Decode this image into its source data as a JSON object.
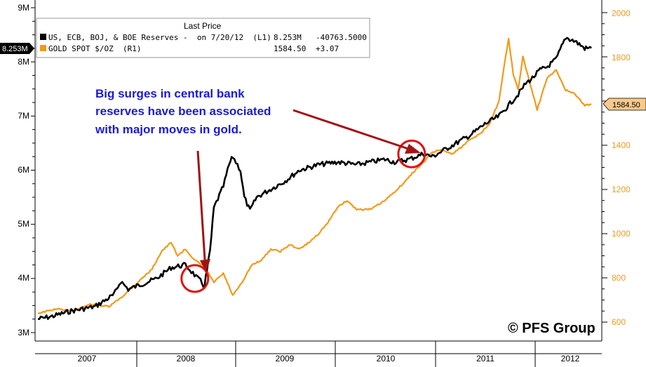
{
  "chart_data": {
    "type": "line",
    "legend": {
      "header": "Last Price",
      "position": "top-left",
      "entries": [
        {
          "label": "US, ECB, BOJ, & BOE Reserves -  on 7/20/12  (L1)",
          "last": "8.253M",
          "change": "-40763.5000"
        },
        {
          "label": "GOLD SPOT $/OZ  (R1)",
          "last": "1584.50",
          "change": "+3.07"
        }
      ]
    },
    "left_axis": {
      "ticks": [
        "3M",
        "4M",
        "5M",
        "6M",
        "7M",
        "8M",
        "9M"
      ],
      "ylim": [
        3000000,
        9000000
      ]
    },
    "right_axis": {
      "ticks": [
        "600",
        "800",
        "1000",
        "1200",
        "1400",
        "1600",
        "1800",
        "2000"
      ],
      "ylim": [
        570,
        2040
      ]
    },
    "x_labels": [
      "2007",
      "2008",
      "2009",
      "2010",
      "2011",
      "2012"
    ],
    "last_value_tags": {
      "left": "8.253M",
      "right": "1584.50"
    },
    "series": [
      {
        "name": "US, ECB, BOJ, & BOE Reserves",
        "axis": "left",
        "color": "#000000",
        "x": [
          2006.65,
          2006.8,
          2007.0,
          2007.25,
          2007.45,
          2007.52,
          2007.6,
          2007.75,
          2007.9,
          2008.05,
          2008.2,
          2008.28,
          2008.33,
          2008.36,
          2008.4,
          2008.46,
          2008.5,
          2008.6,
          2008.66,
          2008.7,
          2008.78,
          2008.82,
          2008.88,
          2008.95,
          2009.1,
          2009.25,
          2009.4,
          2009.6,
          2009.8,
          2010.0,
          2010.15,
          2010.3,
          2010.4,
          2010.55,
          2010.7,
          2010.8,
          2010.9,
          2011.05,
          2011.2,
          2011.35,
          2011.5,
          2011.6,
          2011.7,
          2011.78,
          2011.85,
          2011.93,
          2012.0,
          2012.1,
          2012.2,
          2012.3,
          2012.4,
          2012.47
        ],
        "y": [
          3250000,
          3300000,
          3400000,
          3480000,
          3700000,
          3950000,
          3800000,
          3900000,
          4000000,
          4200000,
          4250000,
          4100000,
          4000000,
          3950000,
          3850000,
          4500000,
          5300000,
          5700000,
          6100000,
          6250000,
          6000000,
          5500000,
          5250000,
          5500000,
          5650000,
          5800000,
          6000000,
          6100000,
          6150000,
          6100000,
          6150000,
          6200000,
          6150000,
          6200000,
          6300000,
          6250000,
          6350000,
          6500000,
          6650000,
          6850000,
          7000000,
          7200000,
          7400000,
          7600000,
          7700000,
          7850000,
          7900000,
          8050000,
          8450000,
          8380000,
          8250000,
          8253000
        ]
      },
      {
        "name": "GOLD SPOT $/OZ",
        "axis": "right",
        "color": "#f29a1a",
        "x": [
          2006.65,
          2006.85,
          2007.0,
          2007.2,
          2007.4,
          2007.55,
          2007.7,
          2007.85,
          2007.95,
          2008.05,
          2008.12,
          2008.2,
          2008.3,
          2008.4,
          2008.5,
          2008.6,
          2008.7,
          2008.8,
          2008.9,
          2009.0,
          2009.1,
          2009.2,
          2009.3,
          2009.4,
          2009.5,
          2009.6,
          2009.7,
          2009.8,
          2009.9,
          2010.0,
          2010.15,
          2010.3,
          2010.4,
          2010.5,
          2010.6,
          2010.7,
          2010.8,
          2010.9,
          2011.0,
          2011.1,
          2011.2,
          2011.3,
          2011.4,
          2011.5,
          2011.55,
          2011.6,
          2011.65,
          2011.7,
          2011.75,
          2011.8,
          2011.9,
          2012.0,
          2012.1,
          2012.2,
          2012.3,
          2012.4,
          2012.47
        ],
        "y": [
          640,
          660,
          650,
          680,
          670,
          720,
          780,
          840,
          920,
          960,
          900,
          930,
          880,
          850,
          780,
          820,
          720,
          780,
          860,
          880,
          930,
          920,
          950,
          930,
          960,
          1000,
          1050,
          1120,
          1150,
          1110,
          1110,
          1150,
          1190,
          1230,
          1280,
          1320,
          1370,
          1380,
          1360,
          1390,
          1430,
          1450,
          1500,
          1600,
          1750,
          1880,
          1720,
          1650,
          1800,
          1720,
          1560,
          1700,
          1740,
          1650,
          1630,
          1580,
          1584.5
        ]
      }
    ],
    "annotations": {
      "text_lines": [
        "Big surges in central bank",
        "reserves have been associated",
        "with major moves in gold."
      ],
      "highlights": [
        {
          "x": 2008.3,
          "value": 4000000
        },
        {
          "x": 2010.58,
          "value": 6300000
        }
      ]
    }
  },
  "watermark": "© PFS Group",
  "colors": {
    "reserves": "#000000",
    "gold": "#f29a1a",
    "arrow": "#a01414",
    "circle": "#e01010",
    "annotation": "#1a1ad6"
  }
}
